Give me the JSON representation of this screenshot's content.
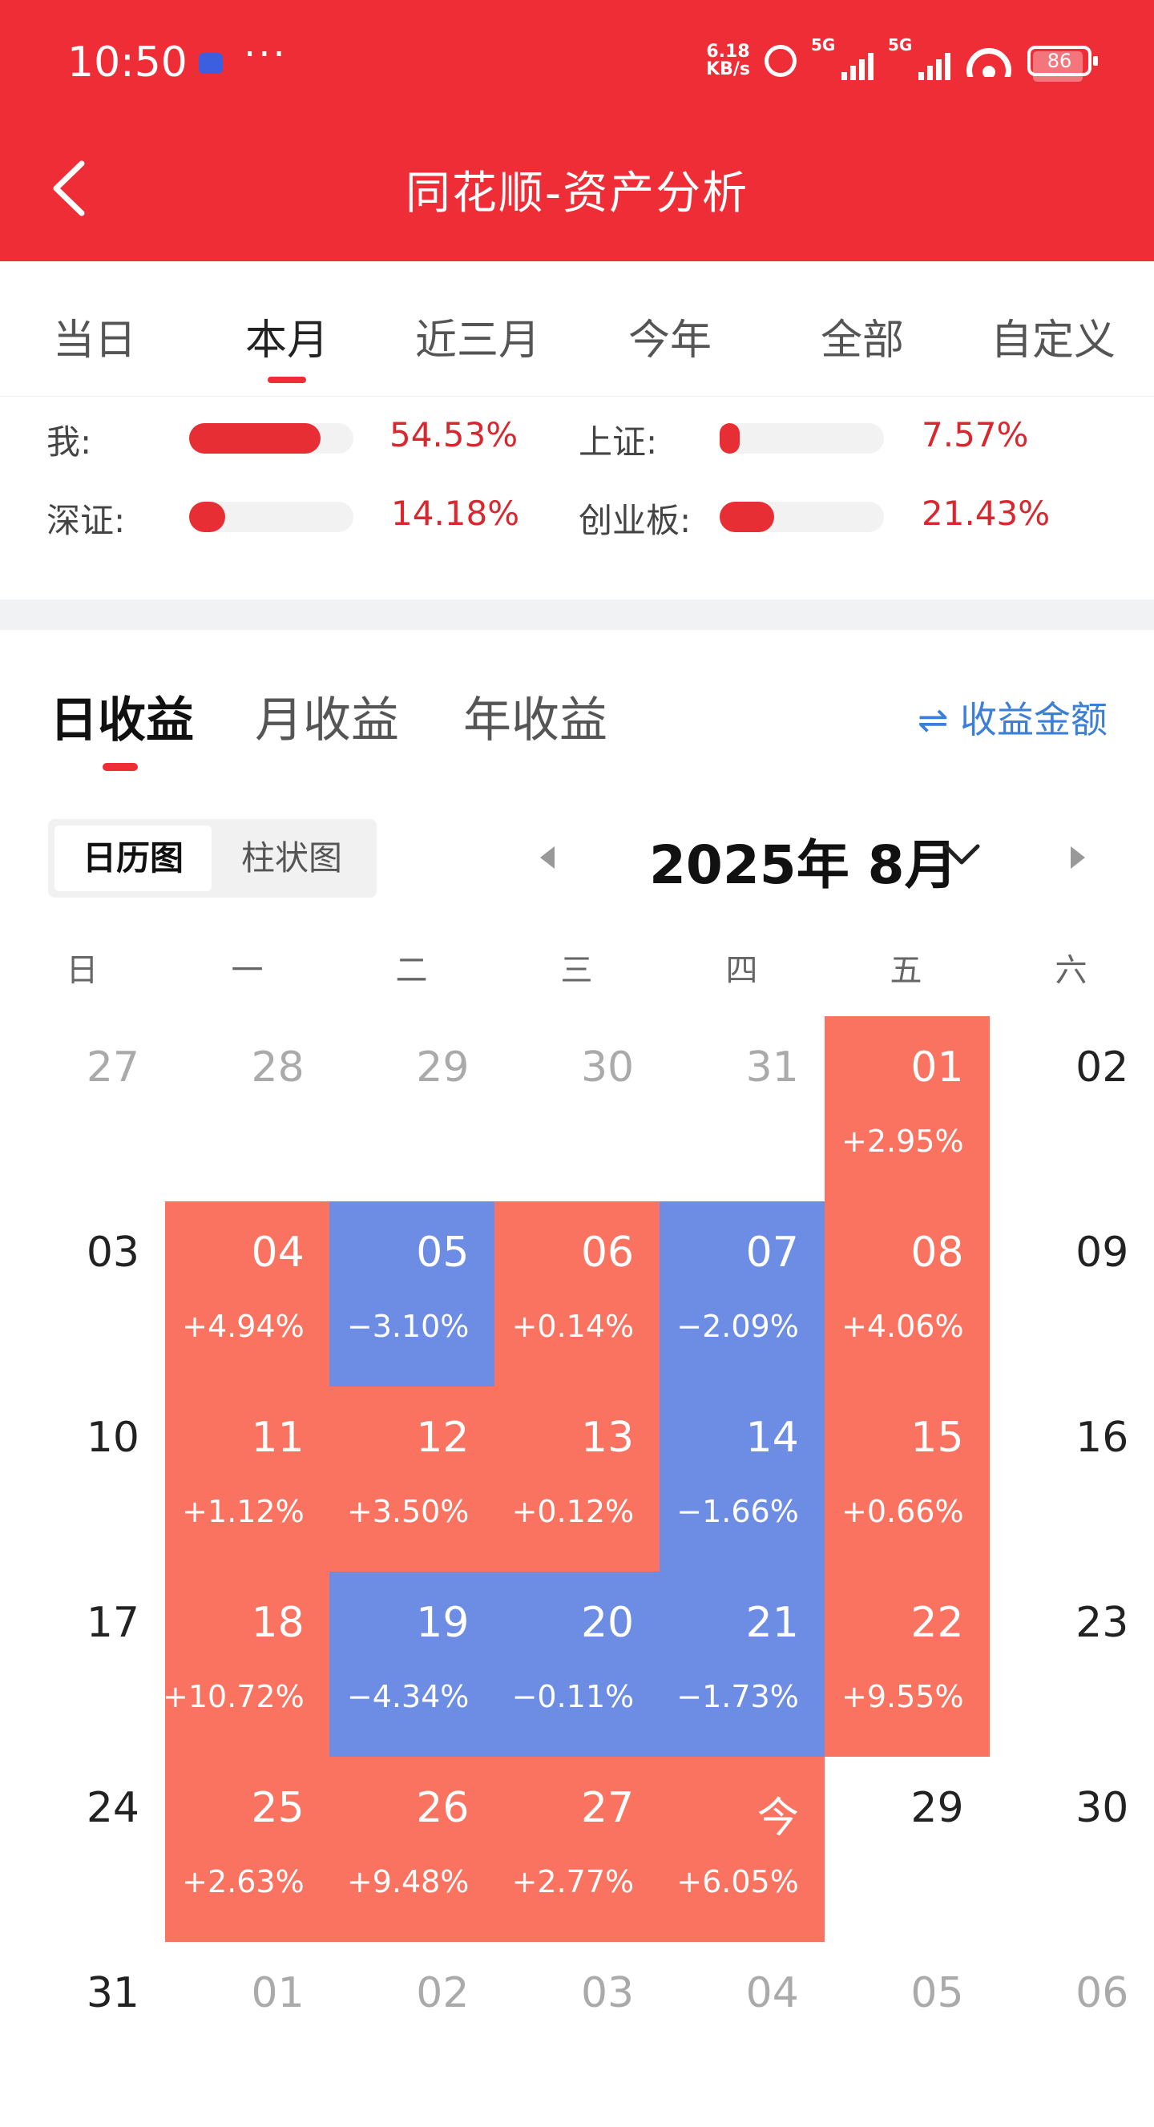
{
  "status_bar": {
    "time": "10:50",
    "net_speed_value": "6.18",
    "net_speed_unit": "KB/s",
    "battery": "86",
    "sim1_label": "5G",
    "sim2_label": "5G",
    "wifi_suffix": "6"
  },
  "header": {
    "title": "同花顺-资产分析",
    "bg_color": "#EF2D37"
  },
  "period_tabs": [
    {
      "label": "当日",
      "active": false
    },
    {
      "label": "本月",
      "active": true
    },
    {
      "label": "近三月",
      "active": false
    },
    {
      "label": "今年",
      "active": false
    },
    {
      "label": "全部",
      "active": false
    },
    {
      "label": "自定义",
      "active": false
    }
  ],
  "comparison": [
    {
      "label": "我:",
      "value": "54.53%",
      "fraction": 0.8
    },
    {
      "label": "上证:",
      "value": "7.57%",
      "fraction": 0.12
    },
    {
      "label": "深证:",
      "value": "14.18%",
      "fraction": 0.22
    },
    {
      "label": "创业板:",
      "value": "21.43%",
      "fraction": 0.33
    }
  ],
  "income_tabs": [
    {
      "label": "日收益",
      "active": true
    },
    {
      "label": "月收益",
      "active": false
    },
    {
      "label": "年收益",
      "active": false
    }
  ],
  "switch_amount": "⇌ 收益金额",
  "view_toggle": [
    "日历图",
    "柱状图"
  ],
  "month": "2025年 8月",
  "weekdays": [
    "日",
    "一",
    "二",
    "三",
    "四",
    "五",
    "六"
  ],
  "calendar": [
    [
      {
        "d": "27",
        "s": "other"
      },
      {
        "d": "28",
        "s": "other"
      },
      {
        "d": "29",
        "s": "other"
      },
      {
        "d": "30",
        "s": "other"
      },
      {
        "d": "31",
        "s": "other"
      },
      {
        "d": "01",
        "p": "+2.95%",
        "s": "up"
      },
      {
        "d": "02",
        "s": "plain"
      }
    ],
    [
      {
        "d": "03",
        "s": "plain"
      },
      {
        "d": "04",
        "p": "+4.94%",
        "s": "up"
      },
      {
        "d": "05",
        "p": "−3.10%",
        "s": "down"
      },
      {
        "d": "06",
        "p": "+0.14%",
        "s": "up"
      },
      {
        "d": "07",
        "p": "−2.09%",
        "s": "down"
      },
      {
        "d": "08",
        "p": "+4.06%",
        "s": "up"
      },
      {
        "d": "09",
        "s": "plain"
      }
    ],
    [
      {
        "d": "10",
        "s": "plain"
      },
      {
        "d": "11",
        "p": "+1.12%",
        "s": "up"
      },
      {
        "d": "12",
        "p": "+3.50%",
        "s": "up"
      },
      {
        "d": "13",
        "p": "+0.12%",
        "s": "up"
      },
      {
        "d": "14",
        "p": "−1.66%",
        "s": "down"
      },
      {
        "d": "15",
        "p": "+0.66%",
        "s": "up"
      },
      {
        "d": "16",
        "s": "plain"
      }
    ],
    [
      {
        "d": "17",
        "s": "plain"
      },
      {
        "d": "18",
        "p": "+10.72%",
        "s": "up"
      },
      {
        "d": "19",
        "p": "−4.34%",
        "s": "down"
      },
      {
        "d": "20",
        "p": "−0.11%",
        "s": "down"
      },
      {
        "d": "21",
        "p": "−1.73%",
        "s": "down"
      },
      {
        "d": "22",
        "p": "+9.55%",
        "s": "up"
      },
      {
        "d": "23",
        "s": "plain"
      }
    ],
    [
      {
        "d": "24",
        "s": "plain"
      },
      {
        "d": "25",
        "p": "+2.63%",
        "s": "up"
      },
      {
        "d": "26",
        "p": "+9.48%",
        "s": "up"
      },
      {
        "d": "27",
        "p": "+2.77%",
        "s": "up"
      },
      {
        "d": "今",
        "p": "+6.05%",
        "s": "up"
      },
      {
        "d": "29",
        "s": "plain"
      },
      {
        "d": "30",
        "s": "plain"
      }
    ],
    [
      {
        "d": "31",
        "s": "plain"
      },
      {
        "d": "01",
        "s": "other"
      },
      {
        "d": "02",
        "s": "other"
      },
      {
        "d": "03",
        "s": "other"
      },
      {
        "d": "04",
        "s": "other"
      },
      {
        "d": "05",
        "s": "other"
      },
      {
        "d": "06",
        "s": "other"
      }
    ]
  ],
  "colors": {
    "up": "#FA7361",
    "down": "#6C8DE3",
    "accent": "#EF2D37"
  }
}
